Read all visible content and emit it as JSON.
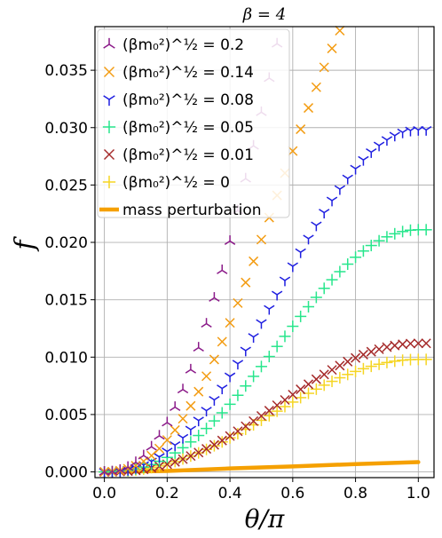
{
  "chart_data": {
    "type": "scatter",
    "title": "β = 4",
    "xlabel": "θ/π",
    "ylabel": "f",
    "xlim": [
      -0.03,
      1.05
    ],
    "ylim": [
      -0.0005,
      0.0388
    ],
    "grid": true,
    "legend_placement": "top-left",
    "x_ticks": [
      "0.0",
      "0.2",
      "0.4",
      "0.6",
      "0.8",
      "1.0"
    ],
    "x_tick_values": [
      0.0,
      0.2,
      0.4,
      0.6,
      0.8,
      1.0
    ],
    "y_ticks": [
      "0.000",
      "0.005",
      "0.010",
      "0.015",
      "0.020",
      "0.025",
      "0.030",
      "0.035"
    ],
    "y_tick_values": [
      0.0,
      0.005,
      0.01,
      0.015,
      0.02,
      0.025,
      0.03,
      0.035
    ],
    "series": [
      {
        "legend_label": "(βm₀²)^½ = 0.2",
        "mass_value": "0.2",
        "color": "#8b1a89",
        "marker": "tri_up",
        "amplitude": 0.072,
        "exponent": 1.6
      },
      {
        "legend_label": "(βm₀²)^½ = 0.14",
        "mass_value": "0.14",
        "color": "#f39c12",
        "marker": "x",
        "amplitude": 0.0465,
        "exponent": 1.6
      },
      {
        "legend_label": "(βm₀²)^½ = 0.08",
        "mass_value": "0.08",
        "color": "#1f1fe0",
        "marker": "tri_down",
        "amplitude": 0.0298,
        "exponent": 1.6
      },
      {
        "legend_label": "(βm₀²)^½ = 0.05",
        "mass_value": "0.05",
        "color": "#27e68c",
        "marker": "plus",
        "amplitude": 0.0211,
        "exponent": 1.6
      },
      {
        "legend_label": "(βm₀²)^½ = 0.01",
        "mass_value": "0.01",
        "color": "#a52a2a",
        "marker": "x",
        "amplitude": 0.0112,
        "exponent": 1.6
      },
      {
        "legend_label": "(βm₀²)^½ = 0",
        "mass_value": "0",
        "color": "#f5d523",
        "marker": "plus",
        "amplitude": 0.0098,
        "exponent": 1.5
      }
    ],
    "line_series": {
      "legend_label": "mass perturbation",
      "color": "#f5a000",
      "x": [
        0.0,
        0.2,
        0.4,
        0.6,
        0.8,
        1.0
      ],
      "y": [
        0.0,
        8e-05,
        0.0003,
        0.00048,
        0.00068,
        0.00085
      ]
    },
    "sample_x": [
      0.0,
      0.025,
      0.05,
      0.075,
      0.1,
      0.125,
      0.15,
      0.175,
      0.2,
      0.225,
      0.25,
      0.275,
      0.3,
      0.325,
      0.35,
      0.375,
      0.4,
      0.425,
      0.45,
      0.475,
      0.5,
      0.525,
      0.55,
      0.575,
      0.6,
      0.625,
      0.65,
      0.675,
      0.7,
      0.725,
      0.75,
      0.775,
      0.8,
      0.825,
      0.85,
      0.875,
      0.9,
      0.925,
      0.95,
      0.975,
      1.0,
      1.025
    ]
  }
}
